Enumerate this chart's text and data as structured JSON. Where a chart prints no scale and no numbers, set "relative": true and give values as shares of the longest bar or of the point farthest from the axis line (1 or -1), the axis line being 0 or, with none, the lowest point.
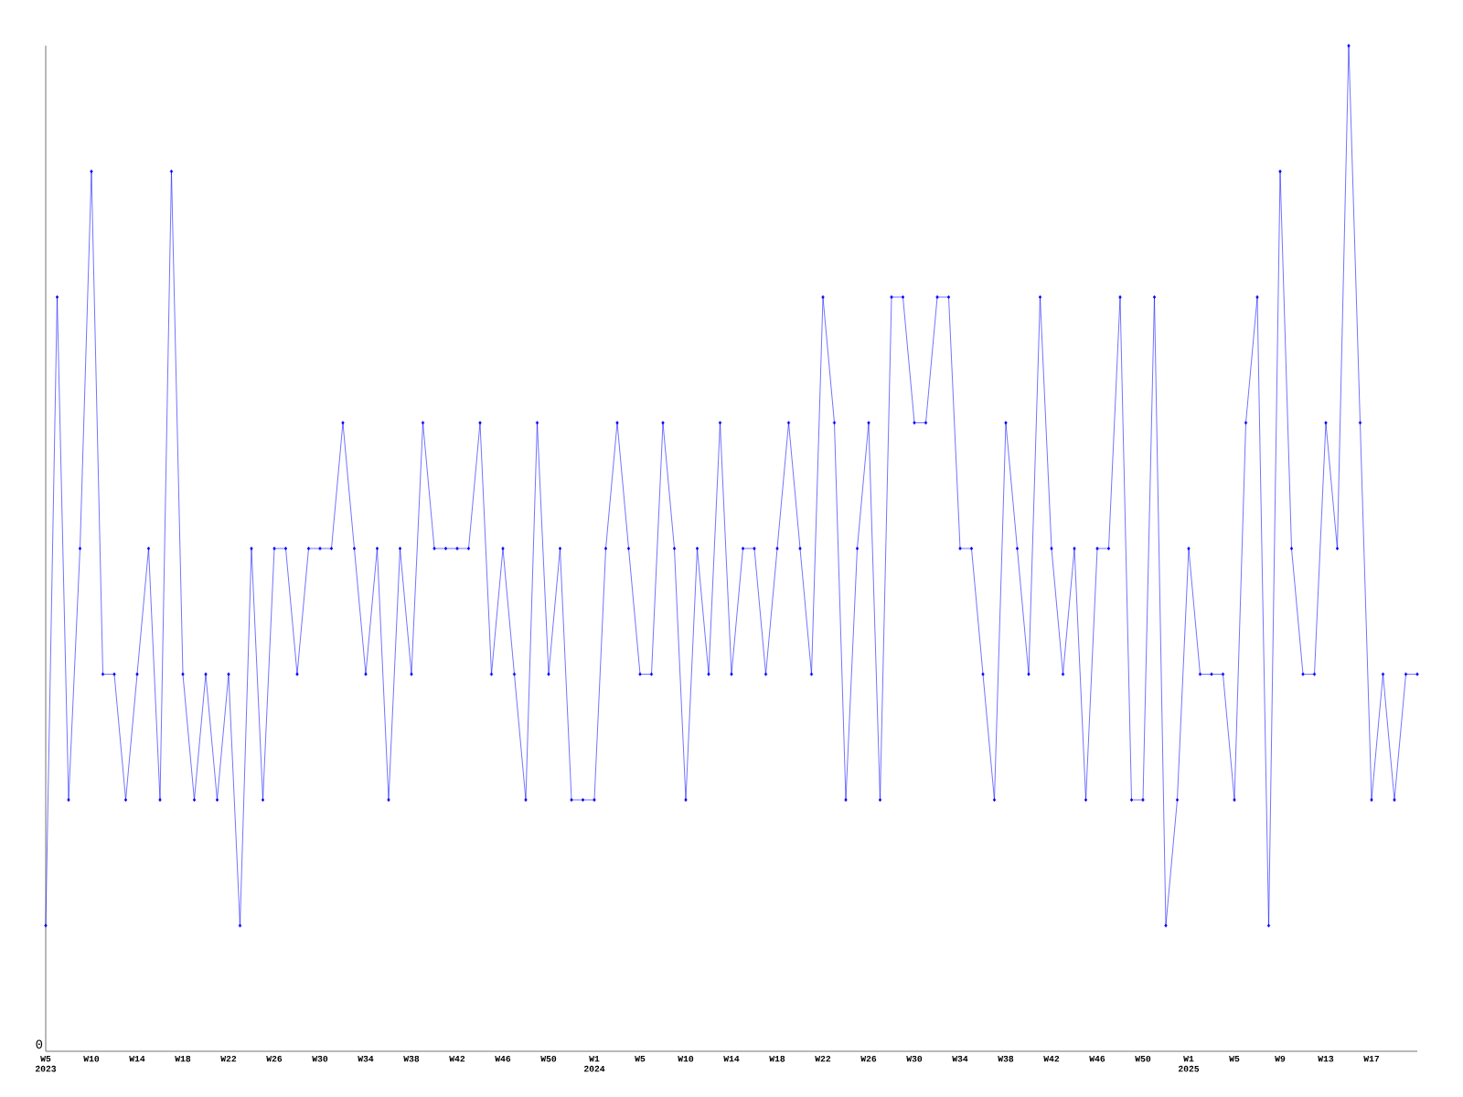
{
  "chart_data": {
    "type": "line",
    "relative": true,
    "color": "#0000ff",
    "marker": "diamond",
    "line_style": "solid",
    "categories": [
      "W5 2023",
      null,
      null,
      null,
      "W10",
      null,
      null,
      null,
      "W14",
      null,
      null,
      null,
      "W18",
      null,
      null,
      null,
      "W22",
      null,
      null,
      null,
      "W26",
      null,
      null,
      null,
      "W30",
      null,
      null,
      null,
      "W34",
      null,
      null,
      null,
      "W38",
      null,
      null,
      null,
      "W42",
      null,
      null,
      null,
      "W46",
      null,
      null,
      null,
      "W50",
      null,
      null,
      null,
      "W1 2024",
      null,
      null,
      null,
      "W5",
      null,
      null,
      null,
      "W10",
      null,
      null,
      null,
      "W14",
      null,
      null,
      null,
      "W18",
      null,
      null,
      null,
      "W22",
      null,
      null,
      null,
      "W26",
      null,
      null,
      null,
      "W30",
      null,
      null,
      null,
      "W34",
      null,
      null,
      null,
      "W38",
      null,
      null,
      null,
      "W42",
      null,
      null,
      null,
      "W46",
      null,
      null,
      null,
      "W50",
      null,
      null,
      null,
      "W1 2025",
      null,
      null,
      null,
      "W5",
      null,
      null,
      null,
      "W9",
      null,
      null,
      null,
      "W13",
      null,
      null,
      null,
      "W17",
      null,
      null,
      null,
      null
    ],
    "values": [
      0.125,
      0.75,
      0.25,
      0.5,
      0.875,
      0.375,
      0.375,
      0.25,
      0.375,
      0.5,
      0.25,
      0.875,
      0.375,
      0.25,
      0.375,
      0.25,
      0.375,
      0.125,
      0.5,
      0.25,
      0.5,
      0.5,
      0.375,
      0.5,
      0.5,
      0.5,
      0.625,
      0.5,
      0.375,
      0.5,
      0.25,
      0.5,
      0.375,
      0.625,
      0.5,
      0.5,
      0.5,
      0.5,
      0.625,
      0.375,
      0.5,
      0.375,
      0.25,
      0.625,
      0.375,
      0.5,
      0.25,
      0.25,
      0.25,
      0.5,
      0.625,
      0.5,
      0.375,
      0.375,
      0.625,
      0.5,
      0.25,
      0.5,
      0.375,
      0.625,
      0.375,
      0.5,
      0.5,
      0.375,
      0.5,
      0.625,
      0.5,
      0.375,
      0.75,
      0.625,
      0.25,
      0.5,
      0.625,
      0.25,
      0.75,
      0.75,
      0.625,
      0.625,
      0.75,
      0.75,
      0.5,
      0.5,
      0.375,
      0.25,
      0.625,
      0.5,
      0.375,
      0.75,
      0.5,
      0.375,
      0.5,
      0.25,
      0.5,
      0.5,
      0.75,
      0.25,
      0.25,
      0.75,
      0.125,
      0.25,
      0.5,
      0.375,
      0.375,
      0.375,
      0.25,
      0.625,
      0.75,
      0.125,
      0.875,
      0.5,
      0.375,
      0.375,
      0.625,
      0.5,
      1,
      0.625,
      0.25,
      0.375,
      0.25,
      0.375,
      0.375
    ],
    "annotations": [
      "0"
    ]
  }
}
